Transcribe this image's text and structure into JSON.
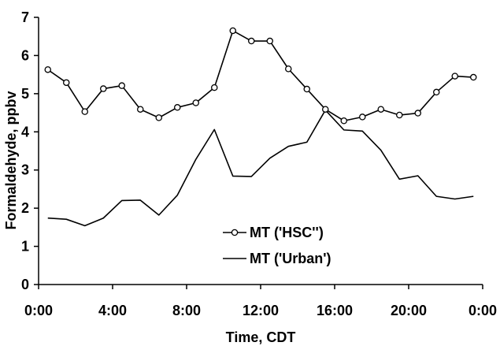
{
  "chart_data": {
    "type": "line",
    "xlabel": "Time, CDT",
    "ylabel": "Formaldehyde, ppbv",
    "xlim": [
      0,
      24
    ],
    "ylim": [
      0,
      7
    ],
    "x_ticks": [
      0,
      4,
      8,
      12,
      16,
      20,
      24
    ],
    "x_tick_labels": [
      "0:00",
      "4:00",
      "8:00",
      "12:00",
      "16:00",
      "20:00",
      "0:00"
    ],
    "y_ticks": [
      0,
      1,
      2,
      3,
      4,
      5,
      6,
      7
    ],
    "y_tick_labels": [
      "0",
      "1",
      "2",
      "3",
      "4",
      "5",
      "6",
      "7"
    ],
    "grid": false,
    "legend_position": "bottom-center",
    "x": [
      0.5,
      1.5,
      2.5,
      3.5,
      4.5,
      5.5,
      6.5,
      7.5,
      8.5,
      9.5,
      10.5,
      11.5,
      12.5,
      13.5,
      14.5,
      15.5,
      16.5,
      17.5,
      18.5,
      19.5,
      20.5,
      21.5,
      22.5,
      23.5
    ],
    "series": [
      {
        "name": "MT ('HSC'')",
        "marker": "open-circle",
        "color": "#000000",
        "values": [
          5.63,
          5.29,
          4.53,
          5.13,
          5.21,
          4.59,
          4.37,
          4.64,
          4.76,
          5.16,
          6.65,
          6.38,
          6.38,
          5.65,
          5.12,
          4.59,
          4.29,
          4.39,
          4.59,
          4.44,
          4.49,
          5.04,
          5.46,
          5.43
        ]
      },
      {
        "name": "MT ('Urban')",
        "marker": "none",
        "color": "#000000",
        "values": [
          1.74,
          1.71,
          1.54,
          1.74,
          2.2,
          2.21,
          1.82,
          2.34,
          3.28,
          4.06,
          2.84,
          2.83,
          3.31,
          3.62,
          3.73,
          4.57,
          4.05,
          4.02,
          3.52,
          2.76,
          2.85,
          2.31,
          2.24,
          2.31
        ]
      }
    ]
  }
}
